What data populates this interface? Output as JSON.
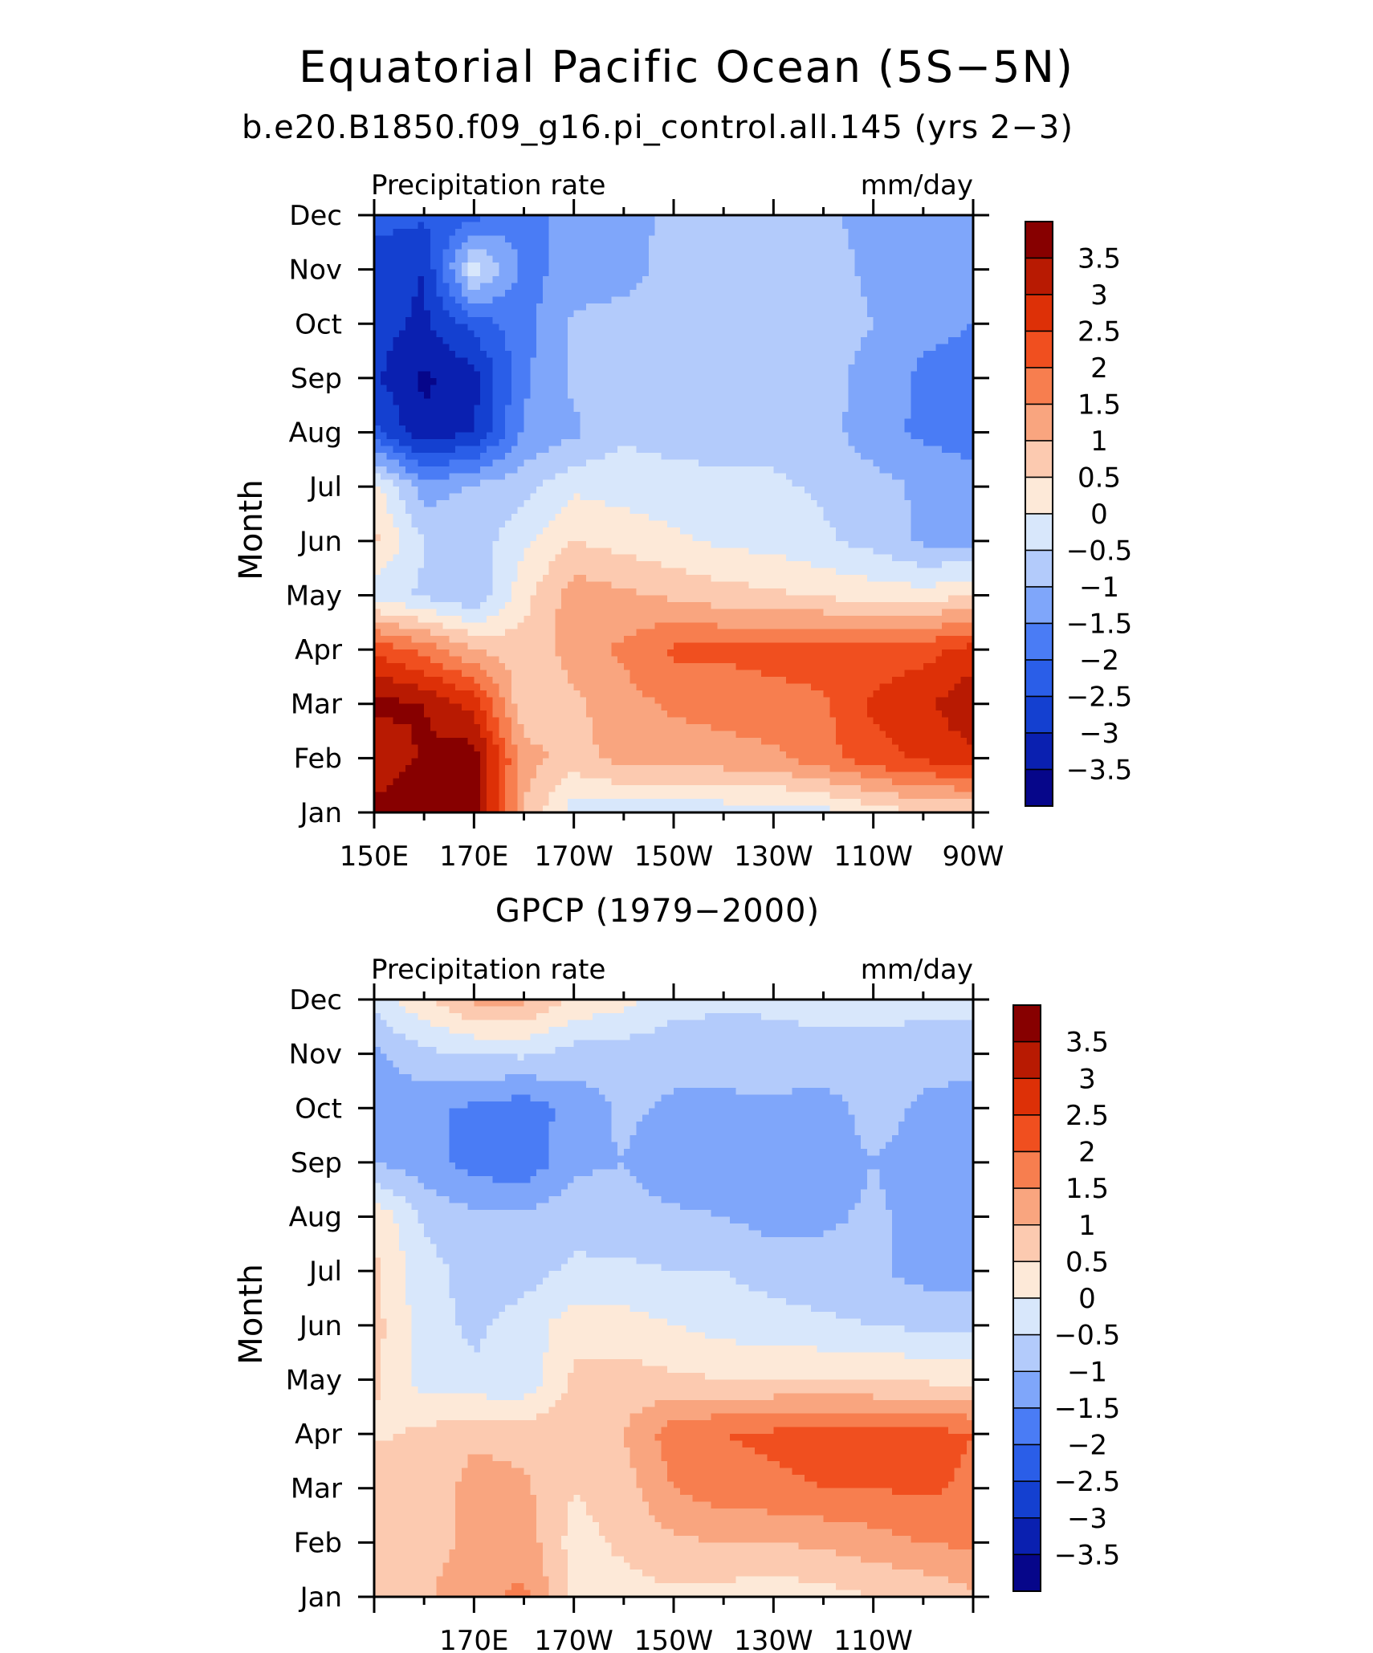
{
  "figure": {
    "title": "Equatorial Pacific Ocean (5S−5N)"
  },
  "chart_data": [
    {
      "type": "heatmap",
      "title": "b.e20.B1850.f09_g16.pi_control.all.145 (yrs 2−3)",
      "left_label": "Precipitation rate",
      "right_label": "mm/day",
      "ylabel": "Month",
      "x_tick_labels": [
        "150E",
        "170E",
        "170W",
        "150W",
        "130W",
        "110W",
        "90W"
      ],
      "x_tick_values": [
        150,
        170,
        190,
        210,
        230,
        250,
        270
      ],
      "xlim": [
        150,
        270
      ],
      "y_tick_labels": [
        "Jan",
        "Feb",
        "Mar",
        "Apr",
        "May",
        "Jun",
        "Jul",
        "Aug",
        "Sep",
        "Oct",
        "Nov",
        "Dec"
      ],
      "ylim": [
        "Jan",
        "Dec"
      ],
      "colorbar_labels": [
        "3.5",
        "3",
        "2.5",
        "2",
        "1.5",
        "1",
        "0.5",
        "0",
        "−0.5",
        "−1",
        "−1.5",
        "−2",
        "−2.5",
        "−3",
        "−3.5"
      ],
      "levels": [
        -3.5,
        -3,
        -2.5,
        -2,
        -1.5,
        -1,
        -0.5,
        0,
        0.5,
        1,
        1.5,
        2,
        2.5,
        3,
        3.5
      ],
      "colors": [
        "#06068a",
        "#0a20b0",
        "#1440d0",
        "#2a5ee8",
        "#4a7cf5",
        "#7fa6fa",
        "#b3cbfb",
        "#d8e7fb",
        "#fde9d8",
        "#fccab0",
        "#f9a57f",
        "#f77e4f",
        "#f04f1f",
        "#dd3007",
        "#b81a02",
        "#870000"
      ],
      "lon": [
        150,
        160,
        170,
        180,
        190,
        200,
        210,
        220,
        230,
        240,
        250,
        260,
        270
      ],
      "month": [
        1,
        2,
        3,
        4,
        5,
        6,
        7,
        8,
        9,
        10,
        11,
        12
      ],
      "values": [
        [
          3.7,
          4.0,
          3.9,
          1.0,
          -0.3,
          -0.3,
          -0.4,
          -0.3,
          -0.3,
          -0.2,
          0.2,
          0.5,
          0.5
        ],
        [
          3.0,
          3.6,
          3.8,
          1.2,
          0.8,
          1.2,
          1.2,
          1.3,
          1.4,
          1.8,
          2.3,
          2.6,
          2.9
        ],
        [
          3.7,
          3.5,
          2.8,
          0.6,
          0.9,
          1.3,
          1.6,
          1.7,
          1.8,
          1.9,
          2.6,
          2.9,
          3.4
        ],
        [
          2.4,
          1.8,
          1.0,
          0.7,
          1.2,
          1.6,
          2.1,
          2.1,
          2.2,
          2.3,
          2.2,
          2.3,
          2.7
        ],
        [
          -0.3,
          -0.6,
          -1.0,
          0.3,
          1.3,
          1.1,
          0.9,
          0.7,
          0.6,
          0.4,
          0.3,
          0.2,
          0.5
        ],
        [
          0.6,
          -0.5,
          -0.8,
          -0.1,
          0.5,
          0.3,
          0.1,
          -0.1,
          -0.2,
          -0.4,
          -0.7,
          -1.1,
          -1.2
        ],
        [
          0.2,
          -1.3,
          -0.9,
          -0.7,
          -0.1,
          -0.2,
          -0.3,
          -0.4,
          -0.4,
          -0.6,
          -0.8,
          -1.1,
          -1.2
        ],
        [
          -2.4,
          -3.4,
          -3.0,
          -1.4,
          -1.1,
          -0.6,
          -0.7,
          -0.7,
          -0.7,
          -0.8,
          -1.3,
          -1.6,
          -1.8
        ],
        [
          -2.9,
          -3.6,
          -3.2,
          -1.6,
          -0.9,
          -0.7,
          -0.7,
          -0.7,
          -0.7,
          -0.8,
          -1.2,
          -1.6,
          -1.6
        ],
        [
          -2.8,
          -3.1,
          -2.3,
          -1.7,
          -0.9,
          -0.8,
          -0.8,
          -0.7,
          -0.7,
          -0.8,
          -1.0,
          -1.4,
          -1.5
        ],
        [
          -2.8,
          -3.0,
          -0.2,
          -1.7,
          -1.3,
          -1.2,
          -0.8,
          -0.8,
          -0.7,
          -0.8,
          -1.1,
          -1.4,
          -1.5
        ],
        [
          -2.3,
          -2.4,
          -2.2,
          -1.5,
          -1.5,
          -1.3,
          -0.8,
          -0.8,
          -0.8,
          -0.9,
          -1.2,
          -1.4,
          -1.5
        ]
      ]
    },
    {
      "type": "heatmap",
      "title": "GPCP (1979−2000)",
      "left_label": "Precipitation rate",
      "right_label": "mm/day",
      "ylabel": "Month",
      "x_tick_labels": [
        "170E",
        "170W",
        "150W",
        "130W",
        "110W"
      ],
      "x_tick_values": [
        170,
        190,
        210,
        230,
        250
      ],
      "xlim": [
        150,
        270
      ],
      "y_tick_labels": [
        "Jan",
        "Feb",
        "Mar",
        "Apr",
        "May",
        "Jun",
        "Jul",
        "Aug",
        "Sep",
        "Oct",
        "Nov",
        "Dec"
      ],
      "ylim": [
        "Jan",
        "Dec"
      ],
      "colorbar_labels": [
        "3.5",
        "3",
        "2.5",
        "2",
        "1.5",
        "1",
        "0.5",
        "0",
        "−0.5",
        "−1",
        "−1.5",
        "−2",
        "−2.5",
        "−3",
        "−3.5"
      ],
      "levels": [
        -3.5,
        -3,
        -2.5,
        -2,
        -1.5,
        -1,
        -0.5,
        0,
        0.5,
        1,
        1.5,
        2,
        2.5,
        3,
        3.5
      ],
      "colors": [
        "#06068a",
        "#0a20b0",
        "#1440d0",
        "#2a5ee8",
        "#4a7cf5",
        "#7fa6fa",
        "#b3cbfb",
        "#d8e7fb",
        "#fde9d8",
        "#fccab0",
        "#f9a57f",
        "#f77e4f",
        "#f04f1f",
        "#dd3007",
        "#b81a02",
        "#870000"
      ],
      "lon": [
        150,
        160,
        170,
        180,
        190,
        200,
        210,
        220,
        230,
        240,
        250,
        260,
        270
      ],
      "month": [
        1,
        2,
        3,
        4,
        5,
        6,
        7,
        8,
        9,
        10,
        11,
        12
      ],
      "values": [
        [
          1.0,
          0.9,
          1.4,
          1.6,
          0.4,
          0.3,
          0.4,
          0.3,
          0.2,
          0.3,
          0.5,
          0.6,
          0.9
        ],
        [
          1.0,
          0.8,
          1.1,
          1.3,
          0.3,
          0.6,
          0.9,
          1.0,
          1.0,
          1.1,
          1.3,
          1.5,
          1.6
        ],
        [
          1.0,
          0.7,
          1.2,
          1.1,
          0.5,
          0.8,
          1.5,
          1.8,
          1.9,
          2.0,
          2.0,
          2.1,
          1.9
        ],
        [
          0.4,
          0.6,
          0.9,
          0.8,
          0.8,
          1.0,
          1.8,
          2.0,
          2.1,
          2.2,
          2.1,
          2.2,
          2.0
        ],
        [
          0.6,
          -0.2,
          -0.4,
          -0.4,
          0.6,
          0.7,
          0.6,
          0.5,
          0.5,
          0.5,
          0.5,
          0.4,
          0.3
        ],
        [
          0.7,
          -0.3,
          -0.6,
          -0.3,
          0.3,
          0.2,
          0.0,
          -0.2,
          -0.3,
          -0.4,
          -0.5,
          -0.6,
          -0.6
        ],
        [
          0.6,
          -0.3,
          -0.7,
          -0.7,
          -0.4,
          -0.4,
          -0.5,
          -0.5,
          -0.7,
          -0.8,
          -0.9,
          -1.2,
          -1.2
        ],
        [
          0.4,
          -0.6,
          -0.9,
          -0.9,
          -0.7,
          -0.8,
          -0.9,
          -1.0,
          -1.2,
          -1.1,
          -0.9,
          -1.2,
          -1.3
        ],
        [
          -1.0,
          -1.3,
          -1.7,
          -1.9,
          -1.1,
          -1.0,
          -1.4,
          -1.3,
          -1.3,
          -1.3,
          -1.0,
          -1.2,
          -1.3
        ],
        [
          -1.3,
          -1.4,
          -1.6,
          -1.8,
          -1.3,
          -0.9,
          -1.1,
          -1.1,
          -1.1,
          -1.2,
          -0.8,
          -1.1,
          -1.2
        ],
        [
          -1.1,
          -0.6,
          -0.5,
          -0.4,
          -0.7,
          -0.8,
          -0.8,
          -0.8,
          -0.7,
          -0.7,
          -0.7,
          -0.8,
          -0.8
        ],
        [
          -0.3,
          0.4,
          1.1,
          1.1,
          0.4,
          0.2,
          -0.3,
          -0.4,
          -0.4,
          -0.3,
          -0.3,
          -0.3,
          -0.3
        ]
      ]
    }
  ]
}
